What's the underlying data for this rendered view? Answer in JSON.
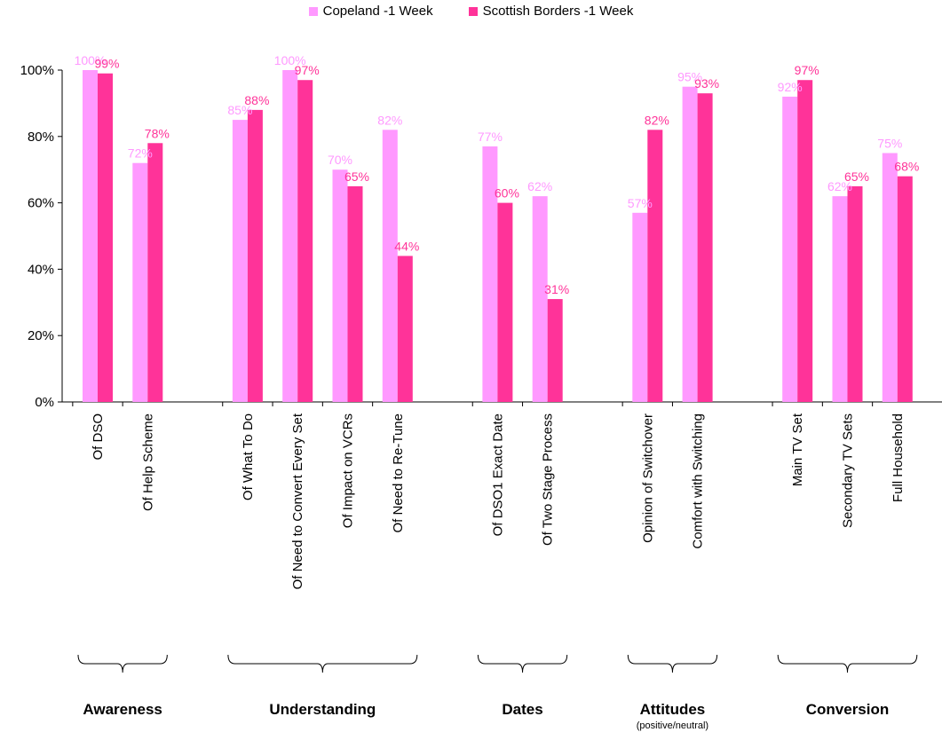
{
  "colors": {
    "copeland": "#ff99ff",
    "scottish": "#ff3399",
    "copeland_label": "#ff99ff",
    "scottish_label": "#ff3399",
    "axis": "#000000"
  },
  "legend": [
    {
      "name": "Copeland -1 Week"
    },
    {
      "name": "Scottish Borders -1 Week"
    }
  ],
  "chart_data": {
    "type": "bar",
    "title": "",
    "xlabel": "",
    "ylabel": "",
    "ylim": [
      0,
      100
    ],
    "y_ticks": [
      "0%",
      "20%",
      "40%",
      "60%",
      "80%",
      "100%"
    ],
    "grid": false,
    "legend_position": "top",
    "groups": [
      {
        "name": "Awareness",
        "subtitle": "",
        "categories": [
          "Of DSO",
          "Of Help Scheme"
        ]
      },
      {
        "name": "Understanding",
        "subtitle": "",
        "categories": [
          "Of What To Do",
          "Of Need to Convert Every Set",
          "Of Impact on VCRs",
          "Of Need to Re-Tune"
        ]
      },
      {
        "name": "Dates",
        "subtitle": "",
        "categories": [
          "Of DSO1 Exact Date",
          "Of Two Stage Process"
        ]
      },
      {
        "name": "Attitudes",
        "subtitle": "(positive/neutral)",
        "categories": [
          "Opinion of Switchover",
          "Comfort with Switching"
        ]
      },
      {
        "name": "Conversion",
        "subtitle": "",
        "categories": [
          "Main TV Set",
          "Secondary TV Sets",
          "Full Household"
        ]
      }
    ],
    "series": [
      {
        "name": "Copeland -1 Week",
        "values": [
          100,
          72,
          85,
          100,
          70,
          82,
          77,
          62,
          57,
          95,
          92,
          62,
          75
        ]
      },
      {
        "name": "Scottish Borders -1 Week",
        "values": [
          99,
          78,
          88,
          97,
          65,
          44,
          60,
          31,
          82,
          93,
          97,
          65,
          68
        ]
      }
    ]
  }
}
